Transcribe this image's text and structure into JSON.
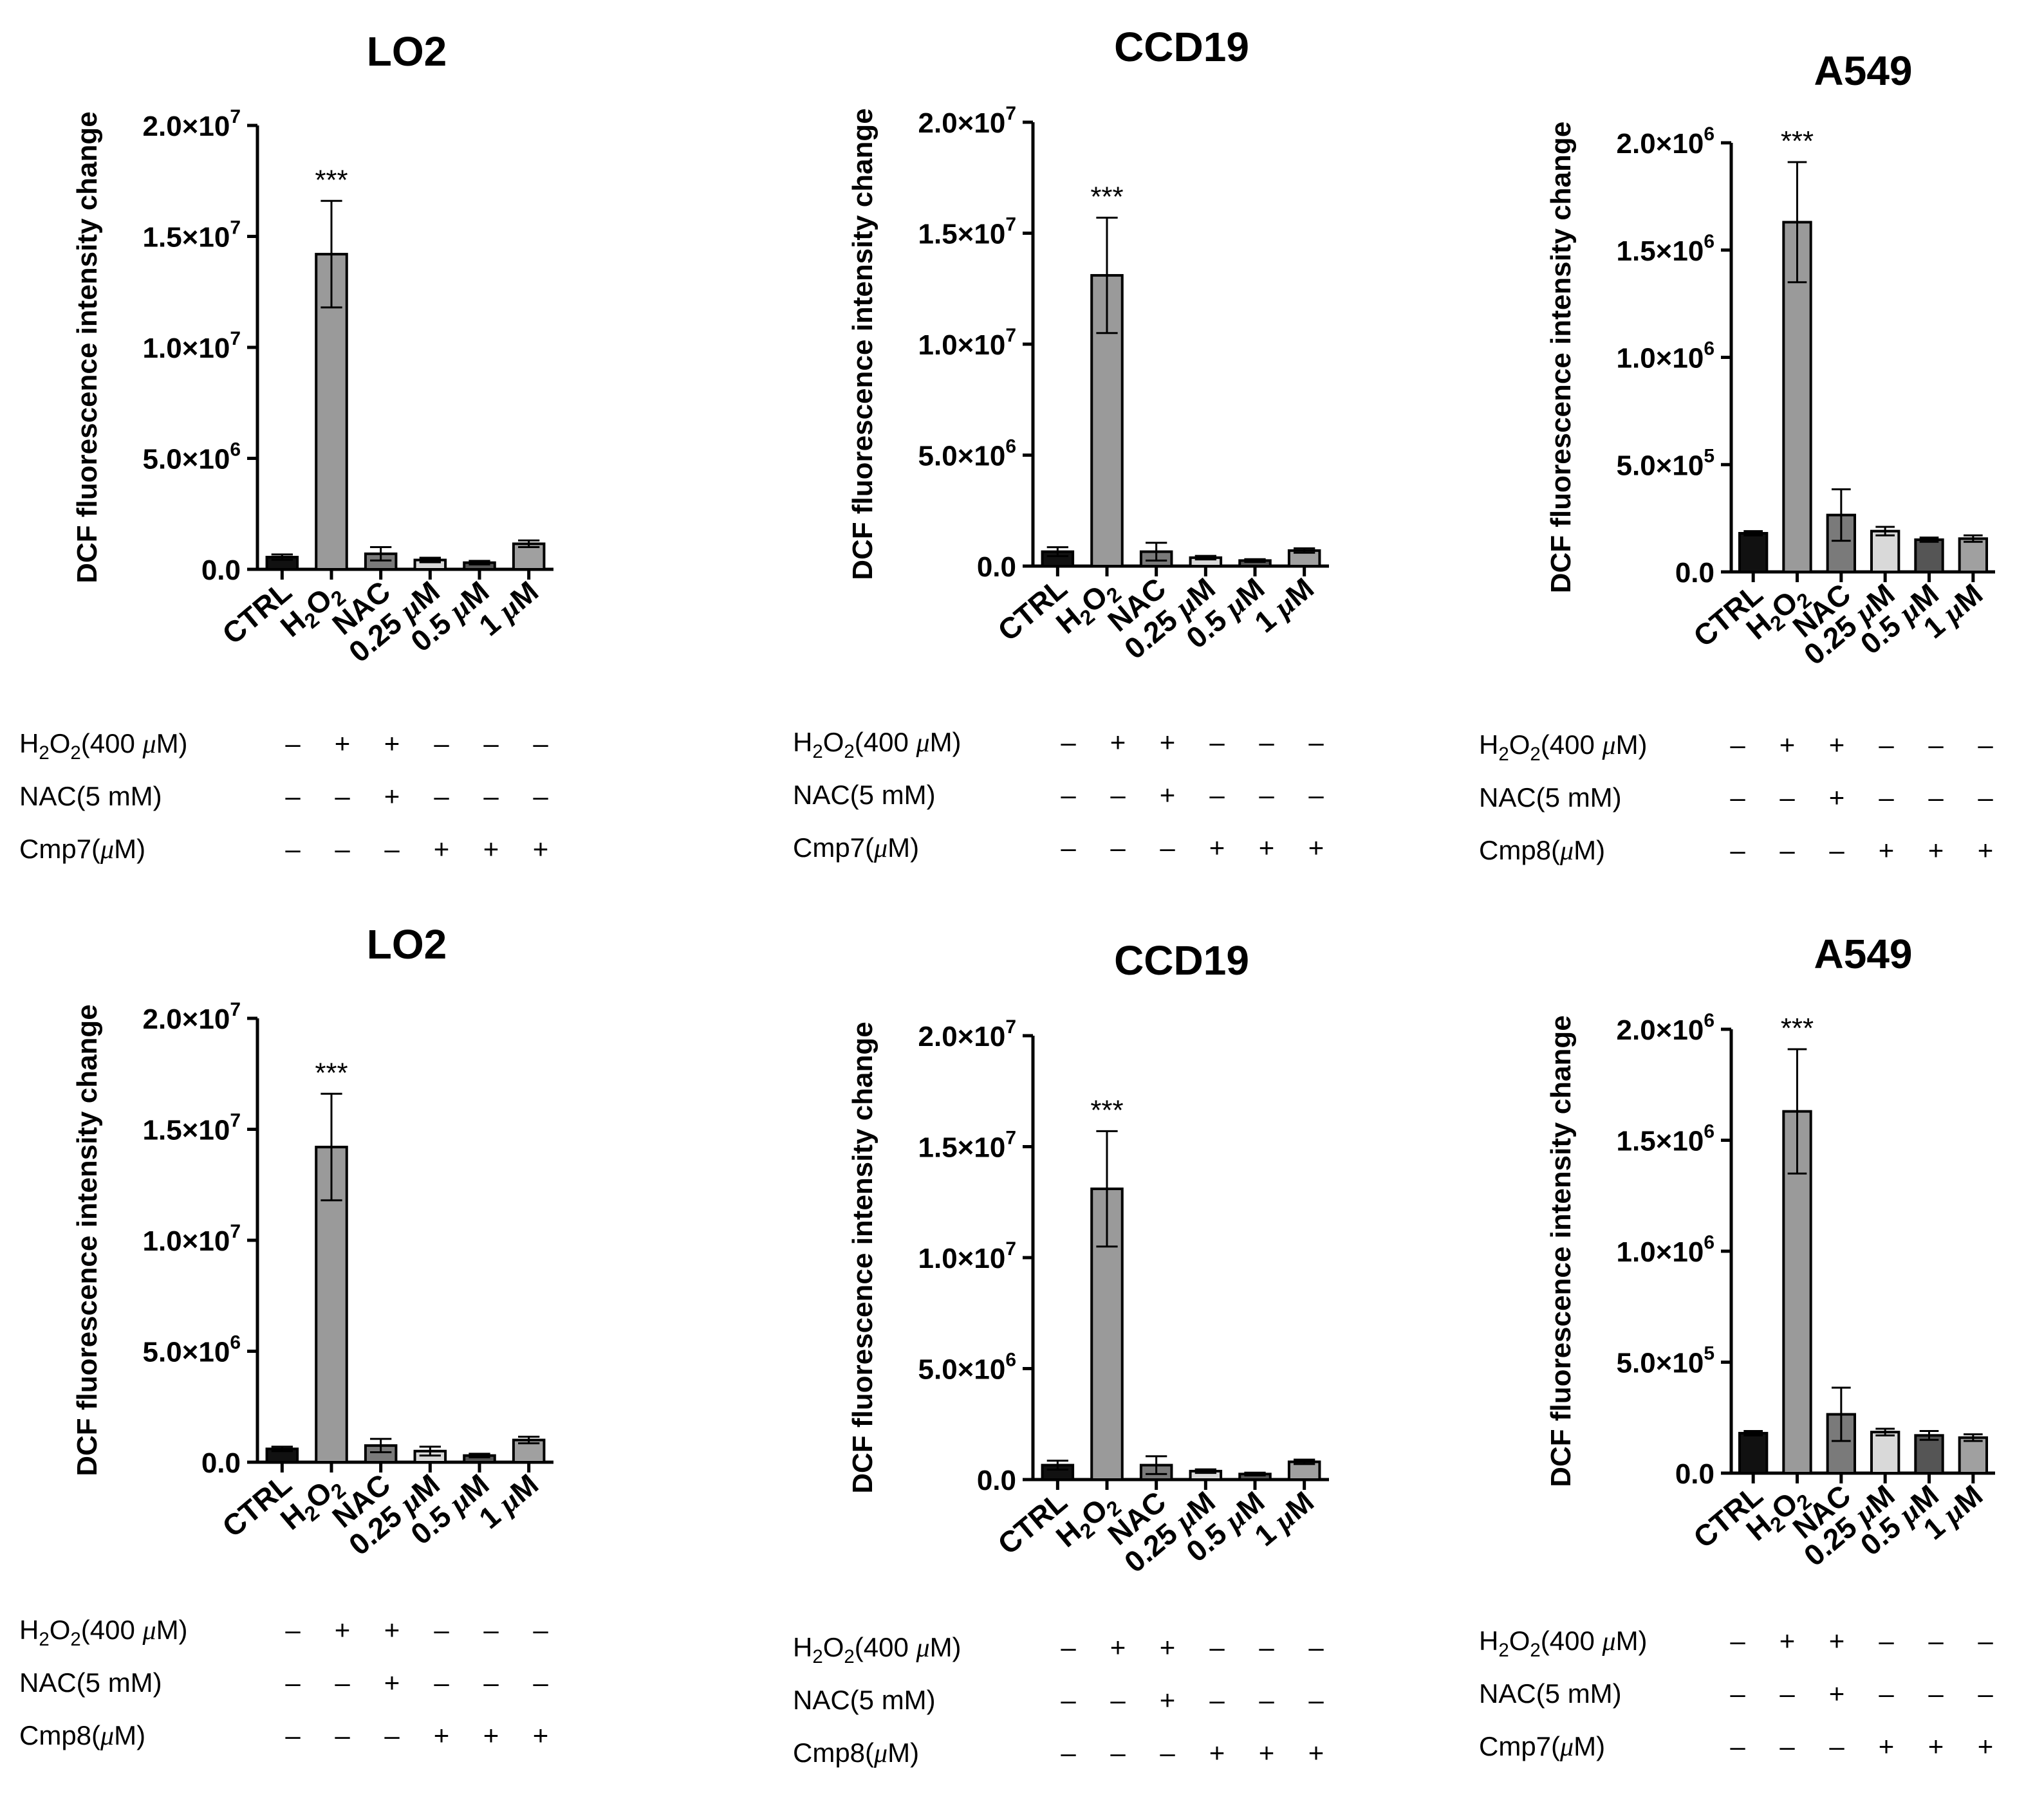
{
  "chart_data": [
    {
      "type": "bar",
      "title": "LO2",
      "ylabel": "DCF fluorescence intensity change",
      "ylim": [
        0,
        20000000
      ],
      "y_ticks": [
        0,
        5000000,
        10000000,
        15000000,
        20000000
      ],
      "y_tick_labels": [
        {
          "m": "0.0",
          "e": ""
        },
        {
          "m": "5.0×10",
          "e": "6"
        },
        {
          "m": "1.0×10",
          "e": "7"
        },
        {
          "m": "1.5×10",
          "e": "7"
        },
        {
          "m": "2.0×10",
          "e": "7"
        }
      ],
      "categories": [
        "CTRL",
        "H2O2",
        "NAC",
        "0.25 μM",
        "0.5 μM",
        "1 μM"
      ],
      "values": [
        550000,
        14200000,
        700000,
        420000,
        300000,
        1150000
      ],
      "errors": [
        120000,
        2400000,
        300000,
        100000,
        80000,
        150000
      ],
      "bar_colors": [
        "#111111",
        "#9a9a9a",
        "#7a7a7a",
        "#d9d9d9",
        "#555555",
        "#a0a0a0"
      ],
      "significance": {
        "index": 1,
        "label": "***"
      },
      "treatment_table": {
        "rows": [
          {
            "label": "H2O2(400 μM)",
            "signs": [
              "–",
              "+",
              "+",
              "–",
              "–",
              "–"
            ]
          },
          {
            "label": "NAC(5 mM)",
            "signs": [
              "–",
              "–",
              "+",
              "–",
              "–",
              "–"
            ]
          },
          {
            "label": "Cmp7(μM)",
            "signs": [
              "–",
              "–",
              "–",
              "+",
              "+",
              "+"
            ]
          }
        ]
      }
    },
    {
      "type": "bar",
      "title": "CCD19",
      "ylabel": "DCF fluorescence intensity change",
      "ylim": [
        0,
        20000000
      ],
      "y_ticks": [
        0,
        5000000,
        10000000,
        15000000,
        20000000
      ],
      "y_tick_labels": [
        {
          "m": "0.0",
          "e": ""
        },
        {
          "m": "5.0×10",
          "e": "6"
        },
        {
          "m": "1.0×10",
          "e": "7"
        },
        {
          "m": "1.5×10",
          "e": "7"
        },
        {
          "m": "2.0×10",
          "e": "7"
        }
      ],
      "categories": [
        "CTRL",
        "H2O2",
        "NAC",
        "0.25 μM",
        "0.5 μM",
        "1 μM"
      ],
      "values": [
        650000,
        13100000,
        650000,
        380000,
        250000,
        700000
      ],
      "errors": [
        200000,
        2600000,
        400000,
        80000,
        60000,
        100000
      ],
      "bar_colors": [
        "#111111",
        "#9a9a9a",
        "#7a7a7a",
        "#d9d9d9",
        "#555555",
        "#a0a0a0"
      ],
      "significance": {
        "index": 1,
        "label": "***"
      },
      "treatment_table": {
        "rows": [
          {
            "label": "H2O2(400 μM)",
            "signs": [
              "–",
              "+",
              "+",
              "–",
              "–",
              "–"
            ]
          },
          {
            "label": "NAC(5 mM)",
            "signs": [
              "–",
              "–",
              "+",
              "–",
              "–",
              "–"
            ]
          },
          {
            "label": "Cmp7(μM)",
            "signs": [
              "–",
              "–",
              "–",
              "+",
              "+",
              "+"
            ]
          }
        ]
      }
    },
    {
      "type": "bar",
      "title": "A549",
      "ylabel": "DCF fluorescence intensity change",
      "ylim": [
        0,
        2000000
      ],
      "y_ticks": [
        0,
        500000,
        1000000,
        1500000,
        2000000
      ],
      "y_tick_labels": [
        {
          "m": "0.0",
          "e": ""
        },
        {
          "m": "5.0×10",
          "e": "5"
        },
        {
          "m": "1.0×10",
          "e": "6"
        },
        {
          "m": "1.5×10",
          "e": "6"
        },
        {
          "m": "2.0×10",
          "e": "6"
        }
      ],
      "categories": [
        "CTRL",
        "H2O2",
        "NAC",
        "0.25 μM",
        "0.5 μM",
        "1 μM"
      ],
      "values": [
        180000,
        1630000,
        265000,
        190000,
        150000,
        155000
      ],
      "errors": [
        10000,
        280000,
        120000,
        20000,
        10000,
        15000
      ],
      "bar_colors": [
        "#111111",
        "#9a9a9a",
        "#7a7a7a",
        "#d9d9d9",
        "#555555",
        "#a0a0a0"
      ],
      "significance": {
        "index": 1,
        "label": "***"
      },
      "treatment_table": {
        "rows": [
          {
            "label": "H2O2(400 μM)",
            "signs": [
              "–",
              "+",
              "+",
              "–",
              "–",
              "–"
            ]
          },
          {
            "label": "NAC(5 mM)",
            "signs": [
              "–",
              "–",
              "+",
              "–",
              "–",
              "–"
            ]
          },
          {
            "label": "Cmp8(μM)",
            "signs": [
              "–",
              "–",
              "–",
              "+",
              "+",
              "+"
            ]
          }
        ]
      }
    },
    {
      "type": "bar",
      "title": "LO2",
      "ylabel": "DCF fluorescence intensity change",
      "ylim": [
        0,
        20000000
      ],
      "y_ticks": [
        0,
        5000000,
        10000000,
        15000000,
        20000000
      ],
      "y_tick_labels": [
        {
          "m": "0.0",
          "e": ""
        },
        {
          "m": "5.0×10",
          "e": "6"
        },
        {
          "m": "1.0×10",
          "e": "7"
        },
        {
          "m": "1.5×10",
          "e": "7"
        },
        {
          "m": "2.0×10",
          "e": "7"
        }
      ],
      "categories": [
        "CTRL",
        "H2O2",
        "NAC",
        "0.25 μM",
        "0.5 μM",
        "1 μM"
      ],
      "values": [
        600000,
        14200000,
        750000,
        500000,
        300000,
        1000000
      ],
      "errors": [
        100000,
        2400000,
        300000,
        200000,
        80000,
        150000
      ],
      "bar_colors": [
        "#111111",
        "#9a9a9a",
        "#7a7a7a",
        "#d9d9d9",
        "#555555",
        "#a0a0a0"
      ],
      "significance": {
        "index": 1,
        "label": "***"
      },
      "treatment_table": {
        "rows": [
          {
            "label": "H2O2(400 μM)",
            "signs": [
              "–",
              "+",
              "+",
              "–",
              "–",
              "–"
            ]
          },
          {
            "label": "NAC(5 mM)",
            "signs": [
              "–",
              "–",
              "+",
              "–",
              "–",
              "–"
            ]
          },
          {
            "label": "Cmp8(μM)",
            "signs": [
              "–",
              "–",
              "–",
              "+",
              "+",
              "+"
            ]
          }
        ]
      }
    },
    {
      "type": "bar",
      "title": "CCD19",
      "ylabel": "DCF fluorescence intensity change",
      "ylim": [
        0,
        20000000
      ],
      "y_ticks": [
        0,
        5000000,
        10000000,
        15000000,
        20000000
      ],
      "y_tick_labels": [
        {
          "m": "0.0",
          "e": ""
        },
        {
          "m": "5.0×10",
          "e": "6"
        },
        {
          "m": "1.0×10",
          "e": "7"
        },
        {
          "m": "1.5×10",
          "e": "7"
        },
        {
          "m": "2.0×10",
          "e": "7"
        }
      ],
      "categories": [
        "CTRL",
        "H2O2",
        "NAC",
        "0.25 μM",
        "0.5 μM",
        "1 μM"
      ],
      "values": [
        650000,
        13100000,
        650000,
        380000,
        250000,
        800000
      ],
      "errors": [
        200000,
        2600000,
        400000,
        80000,
        60000,
        100000
      ],
      "bar_colors": [
        "#111111",
        "#9a9a9a",
        "#7a7a7a",
        "#d9d9d9",
        "#555555",
        "#a0a0a0"
      ],
      "significance": {
        "index": 1,
        "label": "***"
      },
      "treatment_table": {
        "rows": [
          {
            "label": "H2O2(400 μM)",
            "signs": [
              "–",
              "+",
              "+",
              "–",
              "–",
              "–"
            ]
          },
          {
            "label": "NAC(5 mM)",
            "signs": [
              "–",
              "–",
              "+",
              "–",
              "–",
              "–"
            ]
          },
          {
            "label": "Cmp8(μM)",
            "signs": [
              "–",
              "–",
              "–",
              "+",
              "+",
              "+"
            ]
          }
        ]
      }
    },
    {
      "type": "bar",
      "title": "A549",
      "ylabel": "DCF fluorescence intensity change",
      "ylim": [
        0,
        2000000
      ],
      "y_ticks": [
        0,
        500000,
        1000000,
        1500000,
        2000000
      ],
      "y_tick_labels": [
        {
          "m": "0.0",
          "e": ""
        },
        {
          "m": "5.0×10",
          "e": "5"
        },
        {
          "m": "1.0×10",
          "e": "6"
        },
        {
          "m": "1.5×10",
          "e": "6"
        },
        {
          "m": "2.0×10",
          "e": "6"
        }
      ],
      "categories": [
        "CTRL",
        "H2O2",
        "NAC",
        "0.25 μM",
        "0.5 μM",
        "1 μM"
      ],
      "values": [
        180000,
        1630000,
        265000,
        185000,
        170000,
        160000
      ],
      "errors": [
        10000,
        280000,
        120000,
        15000,
        20000,
        15000
      ],
      "bar_colors": [
        "#111111",
        "#9a9a9a",
        "#7a7a7a",
        "#d9d9d9",
        "#555555",
        "#a0a0a0"
      ],
      "significance": {
        "index": 1,
        "label": "***"
      },
      "treatment_table": {
        "rows": [
          {
            "label": "H2O2(400 μM)",
            "signs": [
              "–",
              "+",
              "+",
              "–",
              "–",
              "–"
            ]
          },
          {
            "label": "NAC(5 mM)",
            "signs": [
              "–",
              "–",
              "+",
              "–",
              "–",
              "–"
            ]
          },
          {
            "label": "Cmp7(μM)",
            "signs": [
              "–",
              "–",
              "–",
              "+",
              "+",
              "+"
            ]
          }
        ]
      }
    }
  ]
}
